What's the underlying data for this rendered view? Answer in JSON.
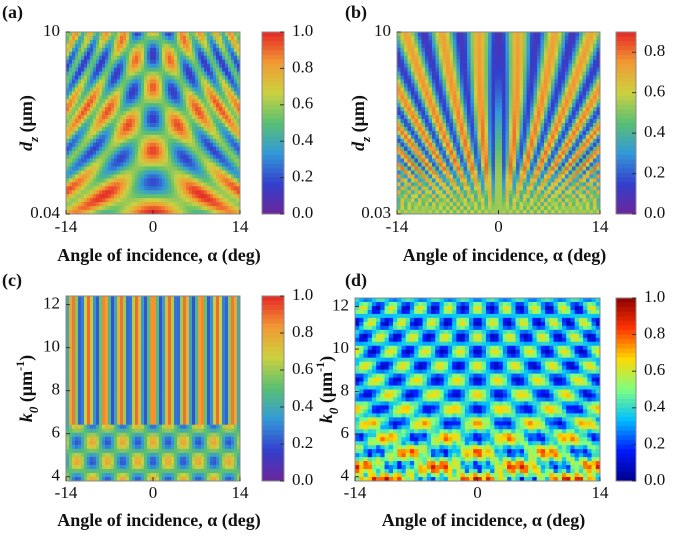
{
  "chart_data": [
    {
      "type": "heatmap",
      "panel_label": "(a)",
      "xlabel": "Angle of incidence, α (deg)",
      "ylabel": [
        {
          "text": "d",
          "style": "italic"
        },
        {
          "text": "z",
          "style": "sub"
        },
        {
          "text": " (μm)",
          "style": "normal"
        }
      ],
      "xlim": [
        -14,
        14
      ],
      "xticks": [
        -14,
        0,
        14
      ],
      "ylim": [
        0.04,
        10
      ],
      "yticks": [
        0.04,
        10
      ],
      "colormap": "rainbow",
      "clim": [
        0,
        1
      ],
      "cticks": [
        {
          "value": 0,
          "label": "0.0"
        },
        0.2,
        0.4,
        0.6,
        0.8,
        {
          "value": 1,
          "label": "1.0"
        }
      ]
    },
    {
      "type": "heatmap",
      "panel_label": "(b)",
      "xlabel": "Angle of incidence, α (deg)",
      "ylabel": [
        {
          "text": "d",
          "style": "italic"
        },
        {
          "text": "z",
          "style": "sub"
        },
        {
          "text": " (μm)",
          "style": "normal"
        }
      ],
      "xlim": [
        -14,
        14
      ],
      "xticks": [
        -14,
        0,
        14
      ],
      "ylim": [
        0.03,
        10
      ],
      "yticks": [
        0.03,
        10
      ],
      "colormap": "rainbow",
      "clim": [
        0,
        0.9
      ],
      "cticks": [
        {
          "value": 0,
          "label": "0.0"
        },
        0.2,
        0.4,
        0.6,
        0.8
      ]
    },
    {
      "type": "heatmap",
      "panel_label": "(c)",
      "xlabel": "Angle of incidence, α (deg)",
      "ylabel": [
        {
          "text": "k",
          "style": "italic"
        },
        {
          "text": "0",
          "style": "sub"
        },
        {
          "text": " (μm",
          "style": "normal"
        },
        {
          "text": "-1",
          "style": "sup"
        },
        {
          "text": ")",
          "style": "normal"
        }
      ],
      "xlim": [
        -14,
        14
      ],
      "xticks": [
        -14,
        0,
        14
      ],
      "ylim": [
        3.8,
        12.4
      ],
      "yticks": [
        4,
        6,
        8,
        10,
        12
      ],
      "colormap": "rainbow",
      "clim": [
        0,
        1
      ],
      "cticks": [
        {
          "value": 0,
          "label": "0.0"
        },
        0.2,
        0.4,
        0.6,
        0.8,
        {
          "value": 1,
          "label": "1.0"
        }
      ]
    },
    {
      "type": "heatmap",
      "panel_label": "(d)",
      "xlabel": "Angle of incidence, α (deg)",
      "ylabel": [
        {
          "text": "k",
          "style": "italic"
        },
        {
          "text": "0",
          "style": "sub"
        },
        {
          "text": " (μm",
          "style": "normal"
        },
        {
          "text": "-1",
          "style": "sup"
        },
        {
          "text": ")",
          "style": "normal"
        }
      ],
      "xlim": [
        -14,
        14
      ],
      "xticks": [
        -14,
        0,
        14
      ],
      "ylim": [
        3.8,
        12.4
      ],
      "yticks": [
        4,
        6,
        8,
        10,
        12
      ],
      "colormap": "jet",
      "clim": [
        0,
        1
      ],
      "cticks": [
        {
          "value": 0,
          "label": "0.0"
        },
        0.2,
        0.4,
        0.6,
        0.8,
        {
          "value": 1,
          "label": "1.0"
        }
      ]
    }
  ]
}
